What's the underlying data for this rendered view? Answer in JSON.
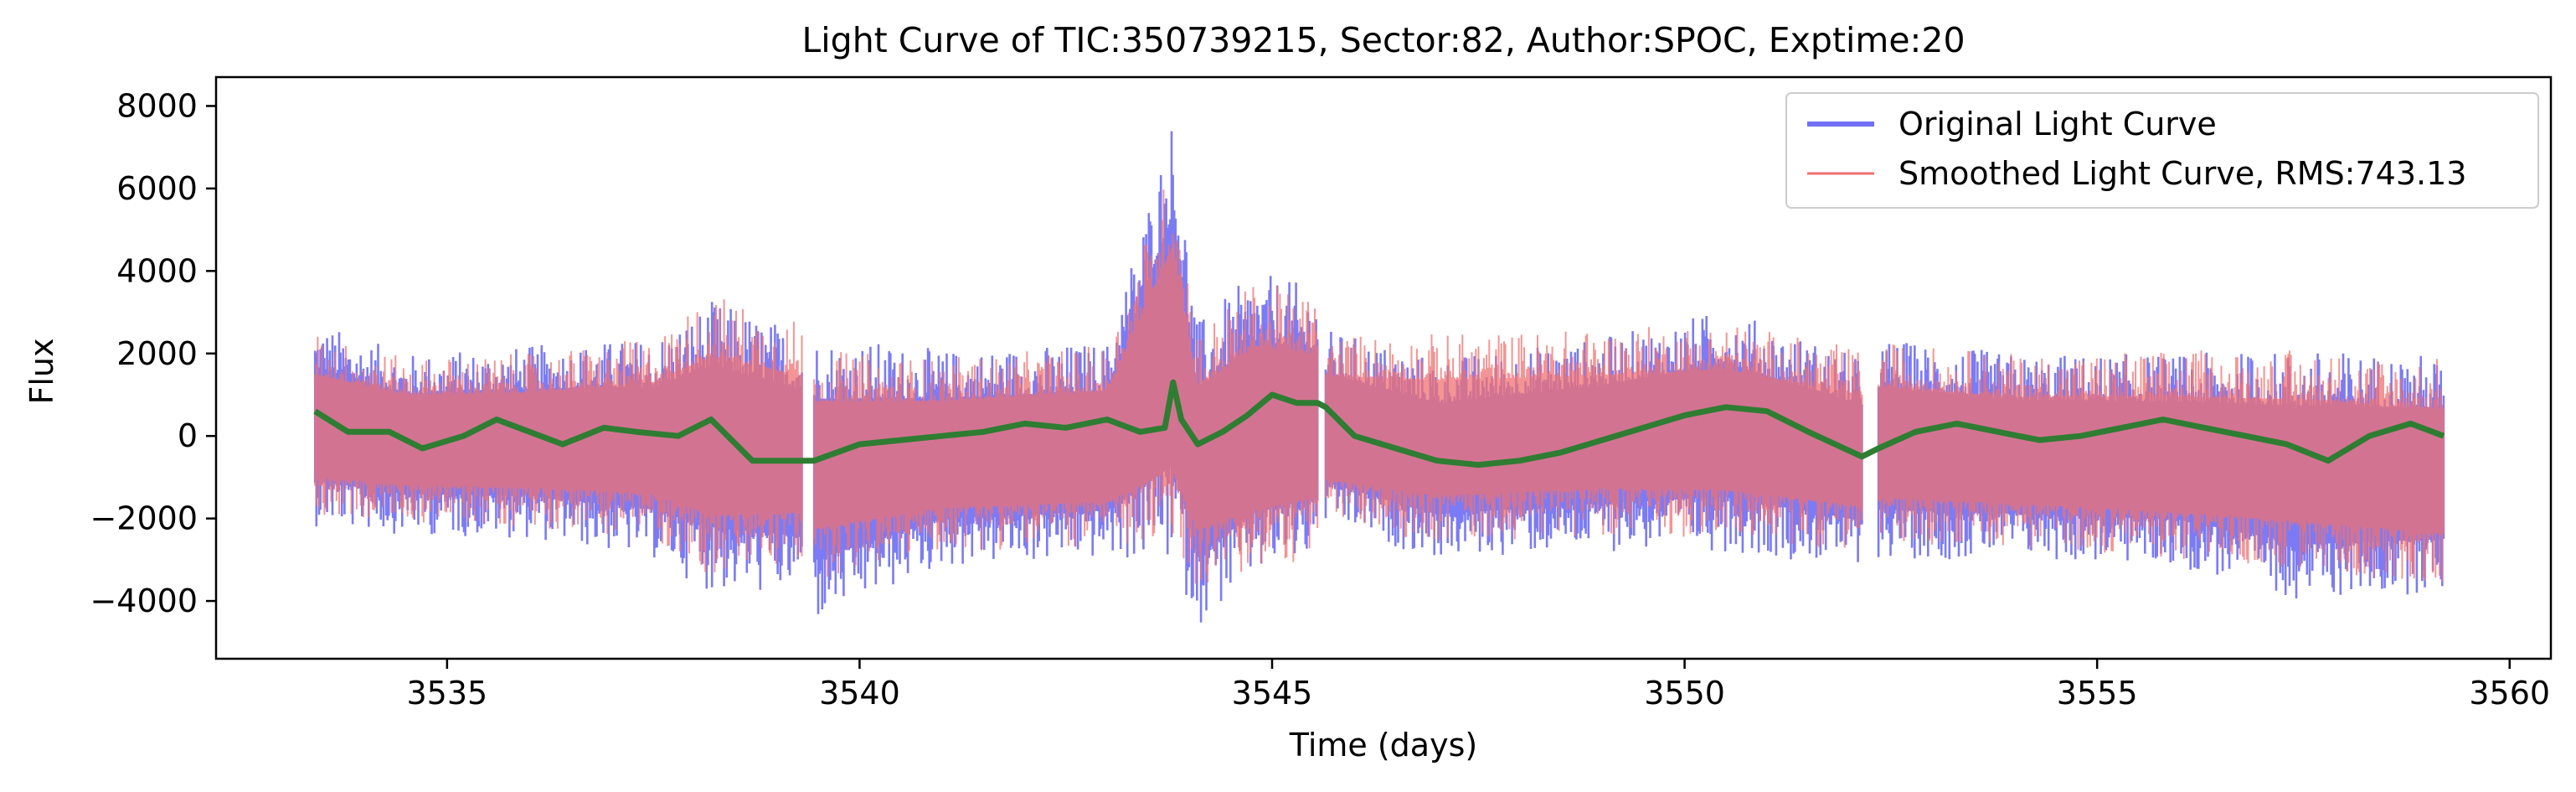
{
  "chart_data": {
    "type": "line",
    "title": "Light Curve of TIC:350739215, Sector:82, Author:SPOC, Exptime:20",
    "xlabel": "Time (days)",
    "ylabel": "Flux",
    "xlim": [
      3532.2,
      3560.5
    ],
    "ylim": [
      -5400,
      8700
    ],
    "grid": false,
    "legend_position": "top-right",
    "x_ticks": [
      3535,
      3540,
      3545,
      3550,
      3555,
      3560
    ],
    "y_ticks": [
      -4000,
      -2000,
      0,
      2000,
      4000,
      6000,
      8000
    ],
    "x_tick_labels": [
      "3535",
      "3540",
      "3545",
      "3550",
      "3555",
      "3560"
    ],
    "y_tick_labels": [
      "−4000",
      "−2000",
      "0",
      "2000",
      "4000",
      "6000",
      "8000"
    ],
    "segments": [
      [
        3533.4,
        3539.3
      ],
      [
        3539.45,
        3545.55
      ],
      [
        3545.65,
        3552.15
      ],
      [
        3552.35,
        3559.2
      ]
    ],
    "series": [
      {
        "name": "Original Light Curve",
        "color": "#7070f5",
        "style": "band",
        "envelope": {
          "x": [
            3533.4,
            3534.5,
            3536,
            3537.5,
            3538.2,
            3539.3,
            3539.45,
            3541,
            3543,
            3543.8,
            3544.1,
            3544.8,
            3545.55,
            3545.65,
            3547,
            3549,
            3550.5,
            3552.15,
            3552.35,
            3554,
            3556,
            3557.5,
            3559.2
          ],
          "upper": [
            2800,
            2000,
            2200,
            2400,
            3300,
            2600,
            2500,
            2100,
            2300,
            7900,
            2800,
            4000,
            3600,
            2600,
            1900,
            2400,
            3100,
            1900,
            2400,
            2000,
            2000,
            2100,
            2000
          ],
          "lower": [
            -2200,
            -2400,
            -2500,
            -3000,
            -3800,
            -3900,
            -4600,
            -3200,
            -3000,
            -3200,
            -4600,
            -3500,
            -3000,
            -2200,
            -3000,
            -2800,
            -2800,
            -3200,
            -3000,
            -3000,
            -3200,
            -4000,
            -3800
          ]
        }
      },
      {
        "name": "Smoothed Light Curve, RMS:743.13",
        "color": "#f07070",
        "style": "band",
        "envelope": {
          "x": [
            3533.4,
            3534.5,
            3536,
            3537.5,
            3538.2,
            3539.3,
            3539.45,
            3541,
            3543,
            3543.8,
            3544.1,
            3544.8,
            3545.55,
            3545.65,
            3547,
            3549,
            3550.5,
            3552.15,
            3552.35,
            3554,
            3556,
            3557.5,
            3559.2
          ],
          "upper": [
            2500,
            1900,
            2000,
            2400,
            3500,
            2800,
            2100,
            1900,
            2200,
            6800,
            2600,
            3800,
            3400,
            2500,
            2500,
            2600,
            2800,
            2100,
            2300,
            2000,
            2100,
            2100,
            1900
          ],
          "lower": [
            -2000,
            -2100,
            -2200,
            -2500,
            -3500,
            -3200,
            -3500,
            -2800,
            -2700,
            -3000,
            -3700,
            -3400,
            -2900,
            -2100,
            -2600,
            -2400,
            -2500,
            -2800,
            -2600,
            -2700,
            -3000,
            -3300,
            -3600
          ]
        }
      },
      {
        "name": "",
        "color": "#2e7d32",
        "style": "line",
        "x": [
          3533.4,
          3533.8,
          3534.3,
          3534.7,
          3535.2,
          3535.6,
          3536.0,
          3536.4,
          3536.9,
          3537.3,
          3537.8,
          3538.2,
          3538.7,
          3539.3,
          3539.45,
          3540.0,
          3540.5,
          3541.0,
          3541.5,
          3542.0,
          3542.5,
          3543.0,
          3543.4,
          3543.7,
          3543.8,
          3543.9,
          3544.1,
          3544.4,
          3544.7,
          3545.0,
          3545.3,
          3545.55,
          3545.65,
          3546.0,
          3546.5,
          3547.0,
          3547.5,
          3548.0,
          3548.5,
          3549.0,
          3549.5,
          3550.0,
          3550.5,
          3551.0,
          3551.5,
          3552.15,
          3552.35,
          3552.8,
          3553.3,
          3553.8,
          3554.3,
          3554.8,
          3555.3,
          3555.8,
          3556.3,
          3556.8,
          3557.3,
          3557.8,
          3558.3,
          3558.8,
          3559.2
        ],
        "y": [
          600,
          100,
          100,
          -300,
          0,
          400,
          100,
          -200,
          200,
          100,
          0,
          400,
          -600,
          -600,
          -600,
          -200,
          -100,
          0,
          100,
          300,
          200,
          400,
          100,
          200,
          1300,
          400,
          -200,
          100,
          500,
          1000,
          800,
          800,
          700,
          0,
          -300,
          -600,
          -700,
          -600,
          -400,
          -100,
          200,
          500,
          700,
          600,
          100,
          -500,
          -300,
          100,
          300,
          100,
          -100,
          0,
          200,
          400,
          200,
          0,
          -200,
          -600,
          0,
          300,
          0
        ]
      }
    ]
  }
}
